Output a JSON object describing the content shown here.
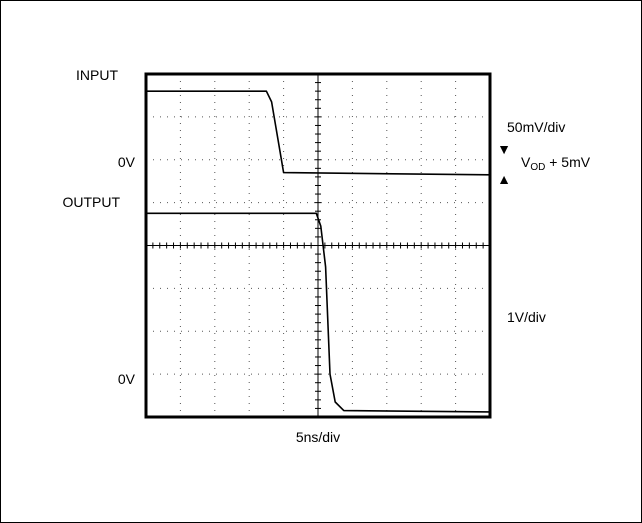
{
  "chart_data": {
    "type": "line",
    "title": "",
    "x_divisions": 10,
    "y_divisions": 8,
    "grid": true,
    "grid_style": "dotted",
    "x_scale_label": "5ns/div",
    "series": [
      {
        "name": "INPUT",
        "zero_label": "0V",
        "scale_label": "50mV/div",
        "x_div": [
          0,
          3.5,
          3.65,
          4.0,
          10
        ],
        "y_div": [
          7.6,
          7.6,
          7.35,
          5.7,
          5.65
        ]
      },
      {
        "name": "OUTPUT",
        "zero_label": "0V",
        "scale_label": "1V/div",
        "x_div": [
          0,
          4.95,
          5.08,
          5.22,
          5.35,
          5.5,
          5.75,
          10
        ],
        "y_div": [
          4.75,
          4.75,
          4.45,
          3.5,
          1.0,
          0.35,
          0.15,
          0.12
        ]
      }
    ],
    "annotations": {
      "overdrive_prefix": "V",
      "overdrive_sub": "OD",
      "overdrive_suffix": " + 5mV",
      "arrow_down": "▼",
      "arrow_up": "▲"
    }
  }
}
